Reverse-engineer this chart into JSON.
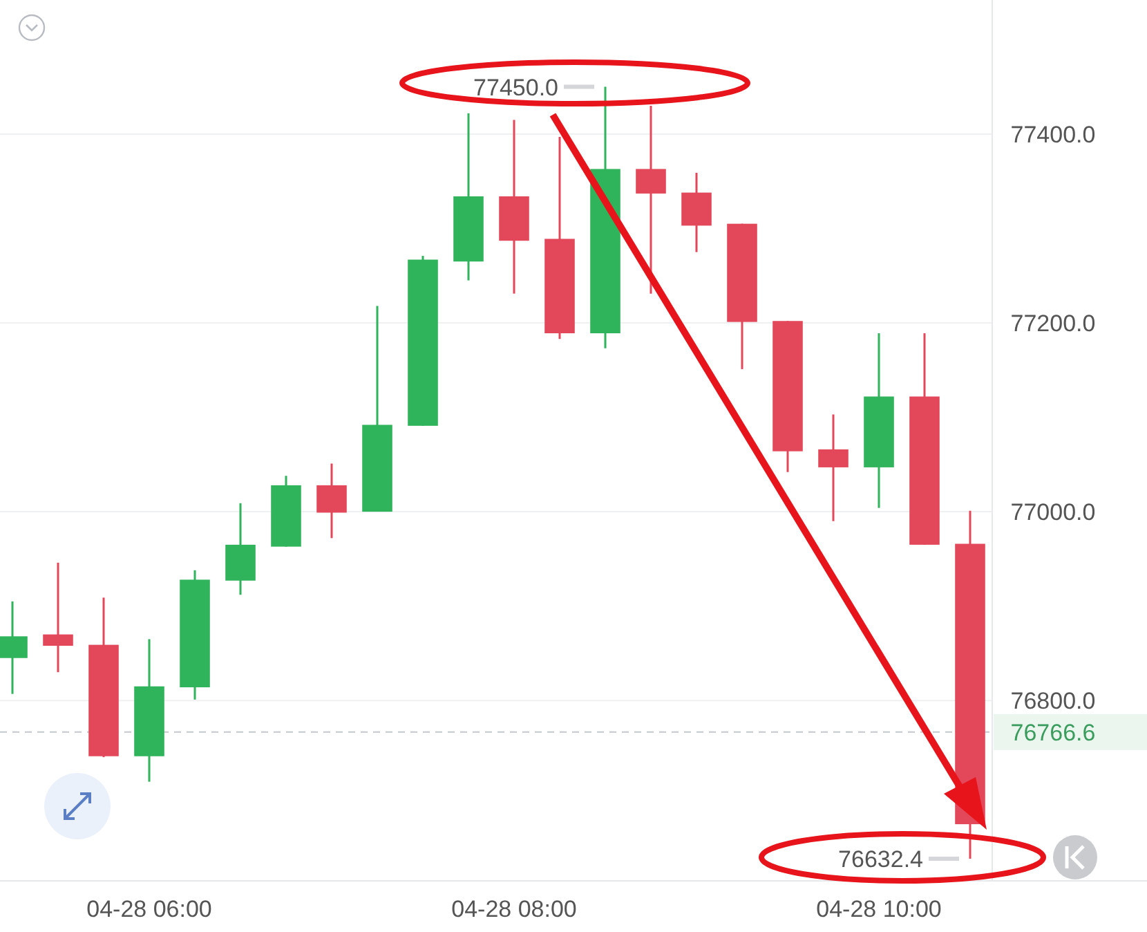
{
  "chart_data": {
    "type": "candlestick",
    "categories": [
      null,
      null,
      null,
      "04-28 06:00",
      null,
      null,
      null,
      null,
      null,
      null,
      null,
      "04-28 08:00",
      null,
      null,
      null,
      null,
      null,
      null,
      null,
      "04-28 10:00",
      null,
      null
    ],
    "ohlc": [
      [
        76845,
        76905,
        76807,
        76868
      ],
      [
        76870,
        76946,
        76830,
        76858
      ],
      [
        76859,
        76909,
        76740,
        76741
      ],
      [
        76741,
        76865,
        76714,
        76815
      ],
      [
        76814,
        76938,
        76801,
        76928
      ],
      [
        76927,
        77009,
        76912,
        76965
      ],
      [
        76963,
        77038,
        76963,
        77028
      ],
      [
        77028,
        77051,
        76972,
        76999
      ],
      [
        77000,
        77218,
        77000,
        77092
      ],
      [
        77091,
        77271,
        77091,
        77267
      ],
      [
        77265,
        77422,
        77245,
        77334
      ],
      [
        77334,
        77415,
        77231,
        77287
      ],
      [
        77289,
        77397,
        77183,
        77189
      ],
      [
        77189,
        77450,
        77173,
        77363
      ],
      [
        77363,
        77430,
        77231,
        77337
      ],
      [
        77338,
        77359,
        77275,
        77303
      ],
      [
        77305,
        77305,
        77151,
        77201
      ],
      [
        77202,
        77202,
        77042,
        77064
      ],
      [
        77066,
        77103,
        76990,
        77047
      ],
      [
        77047,
        77189,
        77004,
        77122
      ],
      [
        77122,
        77189,
        76965,
        76965
      ],
      [
        76966,
        77001,
        76632.4,
        76669
      ]
    ],
    "colors": [
      "#2fb35b",
      "#e3475a",
      "#e3475a",
      "#2fb35b",
      "#2fb35b",
      "#2fb35b",
      "#2fb35b",
      "#e3475a",
      "#2fb35b",
      "#2fb35b",
      "#2fb35b",
      "#e3475a",
      "#e3475a",
      "#2fb35b",
      "#e3475a",
      "#e3475a",
      "#e3475a",
      "#e3475a",
      "#e3475a",
      "#2fb35b",
      "#e3475a",
      "#e3475a"
    ],
    "ylim": [
      76609,
      77542
    ],
    "yticks": [
      {
        "value": 77400,
        "label": "77400.0"
      },
      {
        "value": 77200,
        "label": "77200.0"
      },
      {
        "value": 77000,
        "label": "77000.0"
      },
      {
        "value": 76800,
        "label": "76800.0"
      }
    ],
    "grid": "y",
    "ref_lines": [
      {
        "axis": "y",
        "value": 76766.6,
        "label": "76766.6",
        "color": "#c4c7cb",
        "line_style": "dashed"
      }
    ],
    "annotations": [
      "77450.0",
      "76632.4"
    ]
  }
}
